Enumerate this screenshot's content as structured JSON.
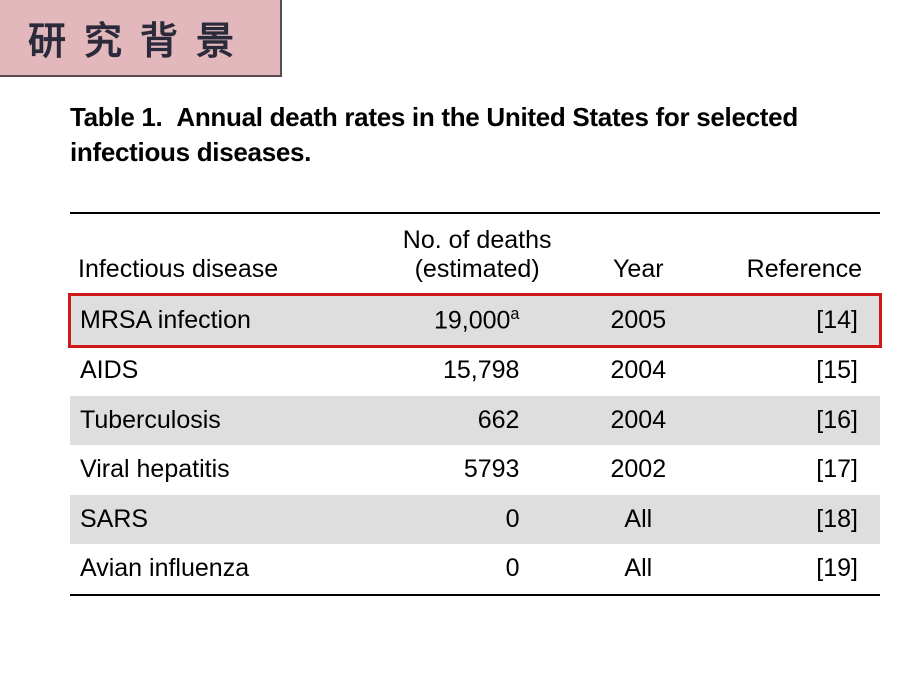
{
  "header": {
    "title": "研究背景",
    "title_bg_color": "#e3b8bd",
    "title_border_color": "#5a4a52",
    "title_text_color": "#2a2a3a",
    "title_fontsize": 38
  },
  "table": {
    "caption_prefix": "Table 1.",
    "caption_text": "Annual death rates in the United States for selected infectious diseases.",
    "caption_fontsize": 26,
    "body_fontsize": 25,
    "stripe_color": "#dedede",
    "highlight_color": "#d01818",
    "border_color": "#000000",
    "columns": [
      {
        "key": "disease",
        "header": "Infectious disease",
        "align": "left"
      },
      {
        "key": "deaths",
        "header_line1": "No. of deaths",
        "header_line2": "(estimated)",
        "align": "right"
      },
      {
        "key": "year",
        "header": "Year",
        "align": "center"
      },
      {
        "key": "ref",
        "header": "Reference",
        "align": "right"
      }
    ],
    "rows": [
      {
        "disease": "MRSA infection",
        "deaths": "19,000",
        "deaths_sup": "a",
        "year": "2005",
        "ref": "[14]",
        "stripe": true,
        "highlight": true
      },
      {
        "disease": "AIDS",
        "deaths": "15,798",
        "deaths_sup": "",
        "year": "2004",
        "ref": "[15]",
        "stripe": false,
        "highlight": false
      },
      {
        "disease": "Tuberculosis",
        "deaths": "662",
        "deaths_sup": "",
        "year": "2004",
        "ref": "[16]",
        "stripe": true,
        "highlight": false
      },
      {
        "disease": "Viral hepatitis",
        "deaths": "5793",
        "deaths_sup": "",
        "year": "2002",
        "ref": "[17]",
        "stripe": false,
        "highlight": false
      },
      {
        "disease": "SARS",
        "deaths": "0",
        "deaths_sup": "",
        "year": "All",
        "ref": "[18]",
        "stripe": true,
        "highlight": false
      },
      {
        "disease": "Avian influenza",
        "deaths": "0",
        "deaths_sup": "",
        "year": "All",
        "ref": "[19]",
        "stripe": false,
        "highlight": false
      }
    ]
  }
}
